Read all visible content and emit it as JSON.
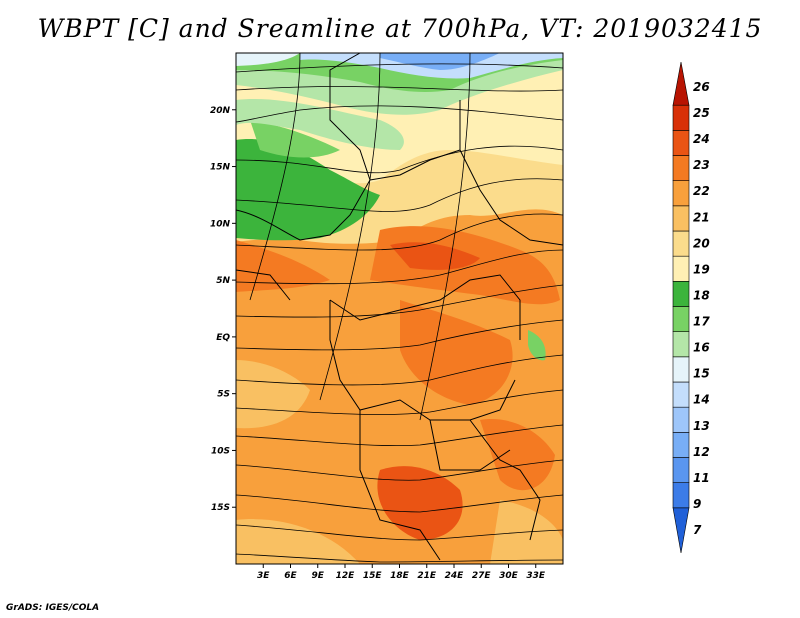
{
  "title": "WBPT [C] and Sreamline at 700hPa, VT: 2019032415",
  "credit": "GrADS: IGES/COLA",
  "map": {
    "lon_range": [
      0,
      36
    ],
    "lat_range": [
      -20,
      25
    ],
    "lat_labels": [
      "20N",
      "15N",
      "10N",
      "5N",
      "EQ",
      "5S",
      "10S",
      "15S"
    ],
    "lat_values": [
      20,
      15,
      10,
      5,
      0,
      -5,
      -10,
      -15
    ],
    "lon_labels": [
      "3E",
      "6E",
      "9E",
      "12E",
      "15E",
      "18E",
      "21E",
      "24E",
      "27E",
      "30E",
      "33E"
    ],
    "lon_values": [
      3,
      6,
      9,
      12,
      15,
      18,
      21,
      24,
      27,
      30,
      33
    ]
  },
  "colorbar": {
    "labels": [
      "7",
      "9",
      "11",
      "12",
      "13",
      "14",
      "15",
      "16",
      "17",
      "18",
      "19",
      "20",
      "21",
      "22",
      "23",
      "24",
      "25",
      "26"
    ],
    "colors": [
      "#2060d8",
      "#3c7ce8",
      "#5a96f0",
      "#78aef6",
      "#9ec6fa",
      "#c4defc",
      "#e6f4fa",
      "#b4e6a8",
      "#78d264",
      "#3cb43c",
      "#fff0b4",
      "#fbdc8c",
      "#f9c062",
      "#f8a03c",
      "#f47a22",
      "#ea5414",
      "#d83008",
      "#b81402"
    ]
  }
}
